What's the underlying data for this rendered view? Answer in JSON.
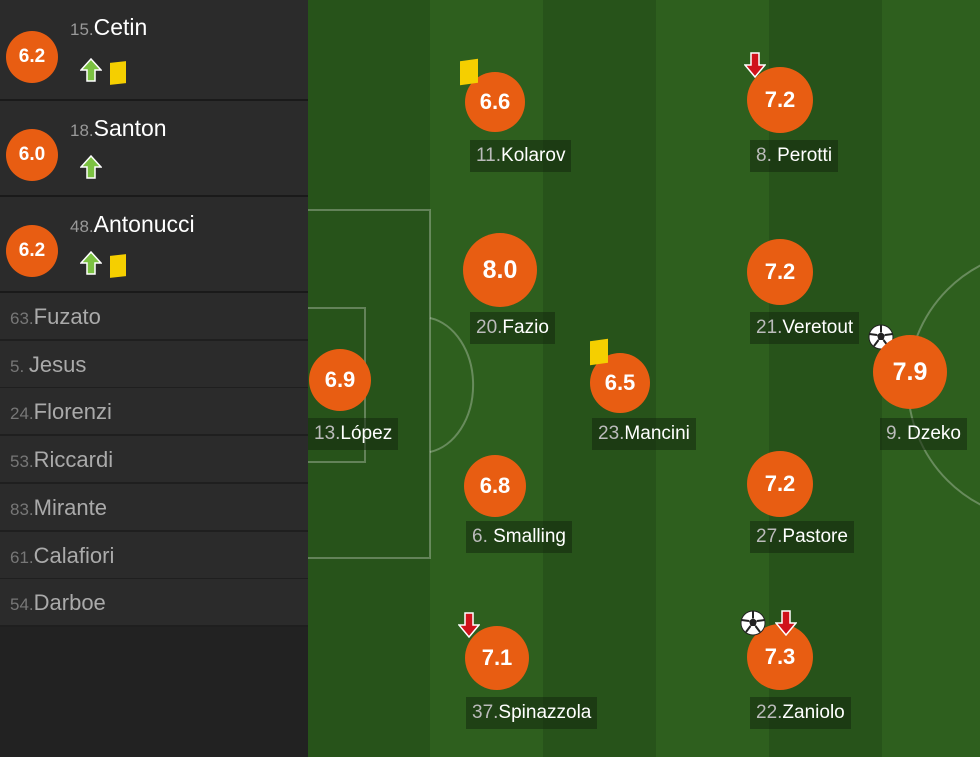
{
  "colors": {
    "rating": "#e85d12",
    "yellow_card": "#f5cf00",
    "sub_in": "#7cc242",
    "sub_out": "#d0121b"
  },
  "substitutes": [
    {
      "number": "15.",
      "name": "Cetin",
      "rating": "6.2",
      "icons": [
        "sub-in-icon",
        "yellow-card-icon"
      ]
    },
    {
      "number": "18.",
      "name": "Santon",
      "rating": "6.0",
      "icons": [
        "sub-in-icon"
      ]
    },
    {
      "number": "48.",
      "name": "Antonucci",
      "rating": "6.2",
      "icons": [
        "sub-in-icon",
        "yellow-card-icon"
      ]
    }
  ],
  "bench": [
    {
      "number": "63.",
      "name": "Fuzato"
    },
    {
      "number": "5. ",
      "name": "Jesus"
    },
    {
      "number": "24.",
      "name": "Florenzi"
    },
    {
      "number": "53.",
      "name": "Riccardi"
    },
    {
      "number": "83.",
      "name": "Mirante"
    },
    {
      "number": "61.",
      "name": "Calafiori"
    },
    {
      "number": "54.",
      "name": "Darboe"
    }
  ],
  "players": [
    {
      "number": "11.",
      "name": "Kolarov",
      "rating": "6.6",
      "icons": [
        "yellow-card-icon"
      ]
    },
    {
      "number": "8. ",
      "name": "Perotti",
      "rating": "7.2",
      "icons": [
        "sub-out-icon"
      ]
    },
    {
      "number": "20.",
      "name": "Fazio",
      "rating": "8.0",
      "icons": []
    },
    {
      "number": "21.",
      "name": "Veretout",
      "rating": "7.2",
      "icons": [
        "goal-icon"
      ]
    },
    {
      "number": "13.",
      "name": "López",
      "rating": "6.9",
      "icons": []
    },
    {
      "number": "23.",
      "name": "Mancini",
      "rating": "6.5",
      "icons": [
        "yellow-card-icon"
      ]
    },
    {
      "number": "9. ",
      "name": "Dzeko",
      "rating": "7.9",
      "icons": []
    },
    {
      "number": "6. ",
      "name": "Smalling",
      "rating": "6.8",
      "icons": []
    },
    {
      "number": "27.",
      "name": "Pastore",
      "rating": "7.2",
      "icons": []
    },
    {
      "number": "37.",
      "name": "Spinazzola",
      "rating": "7.1",
      "icons": [
        "sub-out-icon"
      ]
    },
    {
      "number": "22.",
      "name": "Zaniolo",
      "rating": "7.3",
      "icons": [
        "goal-icon",
        "sub-out-icon"
      ]
    }
  ]
}
